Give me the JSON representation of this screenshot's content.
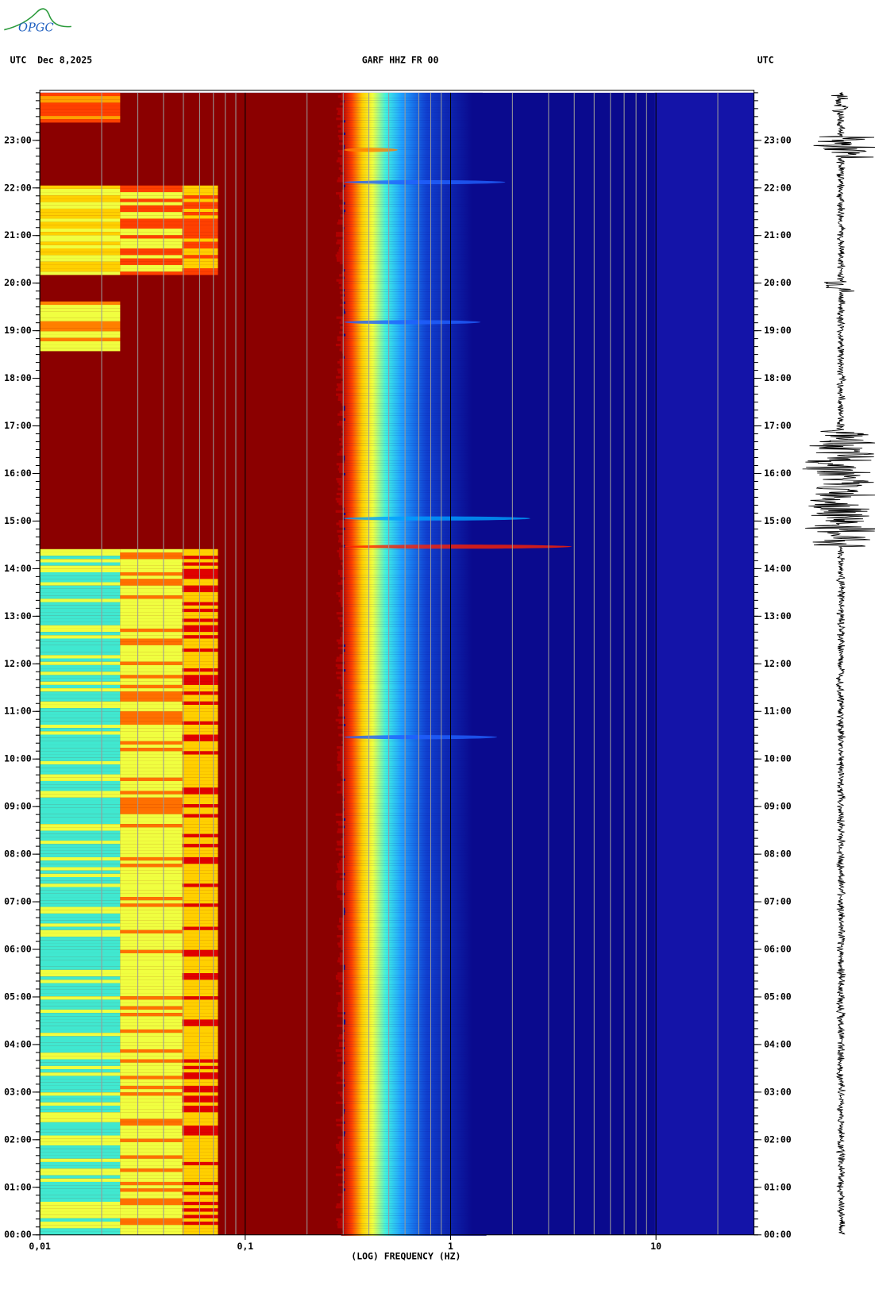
{
  "logo": "OPGC",
  "chart_data": {
    "type": "spectrogram",
    "title": "GARF HHZ FR 00",
    "left_header": "UTC  Dec 8,2025",
    "right_header": "UTC",
    "xlabel": "(LOG) FREQUENCY (HZ)",
    "xscale": "log",
    "xlim": [
      0.01,
      30
    ],
    "xticks": [
      {
        "value": 0.01,
        "label": "0,01"
      },
      {
        "value": 0.1,
        "label": "0,1"
      },
      1,
      10
    ],
    "ylim": [
      0,
      24
    ],
    "yticks": [
      {
        "value": 0,
        "label": "00:00"
      },
      {
        "value": 1,
        "label": "01:00"
      },
      {
        "value": 2,
        "label": "02:00"
      },
      {
        "value": 3,
        "label": "03:00"
      },
      {
        "value": 4,
        "label": "04:00"
      },
      {
        "value": 5,
        "label": "05:00"
      },
      {
        "value": 6,
        "label": "06:00"
      },
      {
        "value": 7,
        "label": "07:00"
      },
      {
        "value": 8,
        "label": "08:00"
      },
      {
        "value": 9,
        "label": "09:00"
      },
      {
        "value": 10,
        "label": "10:00"
      },
      {
        "value": 11,
        "label": "11:00"
      },
      {
        "value": 12,
        "label": "12:00"
      },
      {
        "value": 13,
        "label": "13:00"
      },
      {
        "value": 14,
        "label": "14:00"
      },
      {
        "value": 15,
        "label": "15:00"
      },
      {
        "value": 16,
        "label": "16:00"
      },
      {
        "value": 17,
        "label": "17:00"
      },
      {
        "value": 18,
        "label": "18:00"
      },
      {
        "value": 19,
        "label": "19:00"
      },
      {
        "value": 20,
        "label": "20:00"
      },
      {
        "value": 21,
        "label": "21:00"
      },
      {
        "value": 22,
        "label": "22:00"
      },
      {
        "value": 23,
        "label": "23:00"
      }
    ]
  }
}
